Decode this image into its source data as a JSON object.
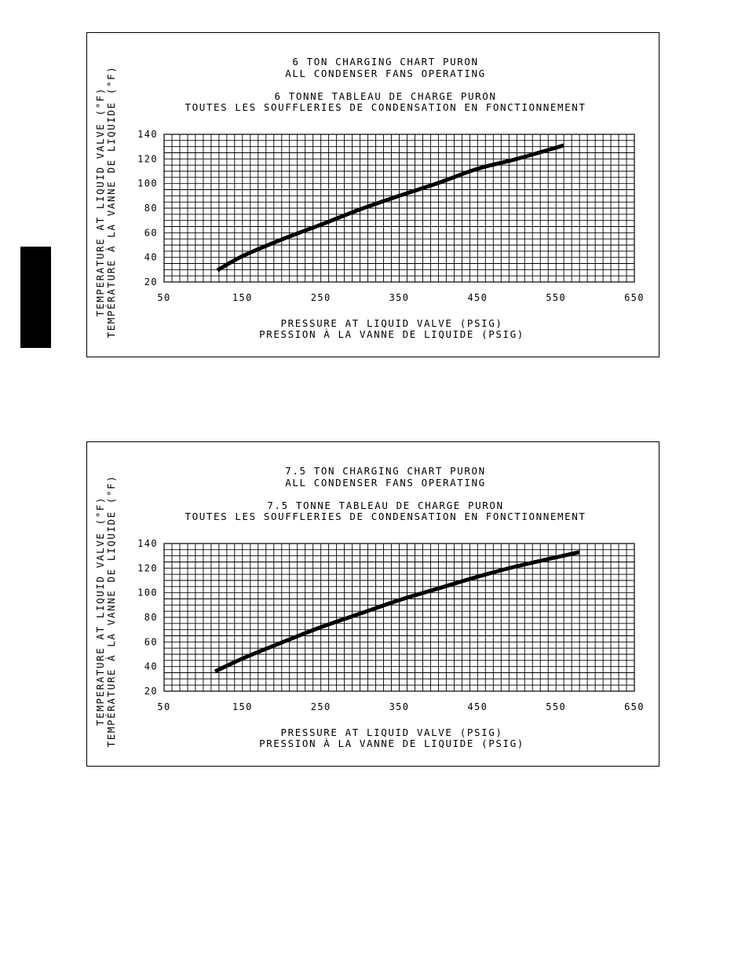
{
  "chart_data": [
    {
      "type": "line",
      "title": [
        "6 TON CHARGING CHART PURON",
        "ALL CONDENSER FANS OPERATING"
      ],
      "subtitle": [
        "6 TONNE TABLEAU DE CHARGE PURON",
        "TOUTES LES SOUFFLERIES DE CONDENSATION EN FONCTIONNEMENT"
      ],
      "xlabel": [
        "PRESSURE AT LIQUID VALVE (PSIG)",
        "PRESSION À LA VANNE DE LIQUIDE (PSIG)"
      ],
      "ylabel": [
        "TEMPERATURE AT LIQUID VALVE (°F)",
        "TEMPÉRATURE À LA VANNE DE LIQUIDE (°F)"
      ],
      "xlim": [
        50,
        650
      ],
      "ylim": [
        20,
        140
      ],
      "x_ticks": [
        "50",
        "150",
        "250",
        "350",
        "450",
        "550",
        "650"
      ],
      "y_ticks": [
        "20",
        "40",
        "60",
        "80",
        "100",
        "120",
        "140"
      ],
      "grid": true,
      "x_minor_step": 10,
      "y_minor_step": 5,
      "line_color": "#000000",
      "series": [
        {
          "x": [
            118,
            150,
            200,
            250,
            300,
            350,
            400,
            450,
            500,
            560
          ],
          "values": [
            29.5,
            41,
            54.5,
            66.5,
            79,
            90,
            100.5,
            112,
            120,
            131
          ]
        }
      ]
    },
    {
      "type": "line",
      "title": [
        "7.5 TON CHARGING CHART PURON",
        "ALL CONDENSER FANS OPERATING"
      ],
      "subtitle": [
        "7.5 TONNE TABLEAU DE CHARGE PURON",
        "TOUTES LES SOUFFLERIES DE CONDENSATION EN FONCTIONNEMENT"
      ],
      "xlabel": [
        "PRESSURE AT LIQUID VALVE (PSIG)",
        "PRESSION À LA VANNE DE LIQUIDE (PSIG)"
      ],
      "ylabel": [
        "TEMPERATURE AT LIQUID VALVE (°F)",
        "TEMPÉRATURE À LA VANNE DE LIQUIDE (°F)"
      ],
      "xlim": [
        50,
        650
      ],
      "ylim": [
        20,
        140
      ],
      "x_ticks": [
        "50",
        "150",
        "250",
        "350",
        "450",
        "550",
        "650"
      ],
      "y_ticks": [
        "20",
        "40",
        "60",
        "80",
        "100",
        "120",
        "140"
      ],
      "grid": true,
      "x_minor_step": 10,
      "y_minor_step": 5,
      "line_color": "#000000",
      "series": [
        {
          "x": [
            115,
            150,
            200,
            250,
            300,
            350,
            400,
            450,
            500,
            580
          ],
          "values": [
            36,
            46.5,
            59.5,
            72,
            83,
            94,
            103.5,
            113,
            121.5,
            133
          ]
        }
      ]
    }
  ]
}
